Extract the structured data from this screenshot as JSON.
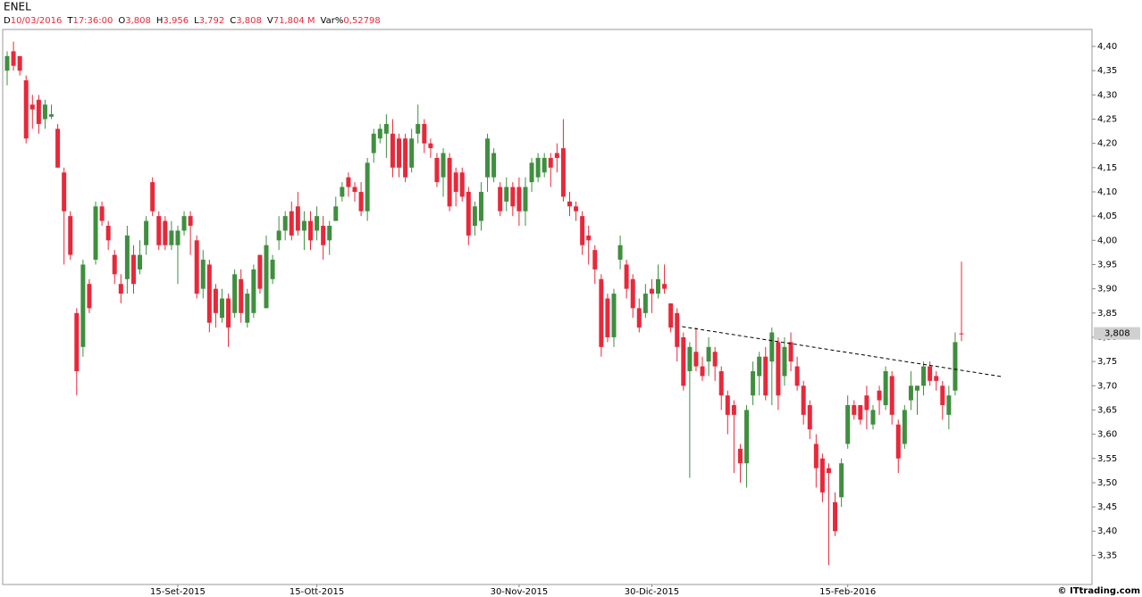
{
  "chart_data": {
    "type": "candlestick",
    "title": "ENEL",
    "info": [
      {
        "label": "D",
        "value": "10/03/2016"
      },
      {
        "label": "T",
        "value": "17:36:00"
      },
      {
        "label": "O",
        "value": "3,808"
      },
      {
        "label": "H",
        "value": "3,956"
      },
      {
        "label": "L",
        "value": "3,792"
      },
      {
        "label": "C",
        "value": "3,808"
      },
      {
        "label": "V",
        "value": "71,804 M"
      },
      {
        "label": "Var%",
        "value": "0,52798"
      }
    ],
    "source": "© ITtrading.com",
    "up_color": "#3f8f3f",
    "down_color": "#e8283a",
    "categories": [
      null,
      null,
      null,
      null,
      null,
      null,
      null,
      null,
      null,
      null,
      null,
      null,
      null,
      null,
      null,
      null,
      null,
      null,
      null,
      null,
      null,
      null,
      null,
      null,
      null,
      null,
      null,
      "15-Set-2015",
      null,
      null,
      null,
      null,
      null,
      null,
      null,
      null,
      null,
      null,
      null,
      null,
      null,
      null,
      null,
      null,
      null,
      null,
      null,
      null,
      null,
      "15-Ott-2015",
      null,
      null,
      null,
      null,
      null,
      null,
      null,
      null,
      null,
      null,
      null,
      null,
      null,
      null,
      null,
      null,
      null,
      null,
      null,
      null,
      null,
      null,
      null,
      null,
      null,
      null,
      null,
      null,
      null,
      null,
      null,
      "30-Nov-2015",
      null,
      null,
      null,
      null,
      null,
      null,
      null,
      null,
      null,
      null,
      null,
      null,
      null,
      null,
      null,
      null,
      null,
      null,
      null,
      null,
      "30-Dic-2015",
      null,
      null,
      null,
      null,
      null,
      null,
      null,
      null,
      null,
      null,
      null,
      null,
      null,
      null,
      null,
      null,
      null,
      null,
      null,
      null,
      null,
      null,
      null,
      null,
      null,
      null,
      null,
      null,
      null,
      null,
      "15-Feb-2016",
      null,
      null,
      null,
      null,
      null,
      null,
      null,
      null,
      null,
      null,
      null,
      null,
      null,
      null,
      null,
      null,
      null,
      null
    ],
    "open": [
      4.35,
      4.39,
      4.38,
      4.33,
      4.28,
      4.29,
      4.25,
      4.255,
      4.23,
      4.14,
      4.05,
      3.85,
      3.78,
      3.91,
      3.96,
      4.07,
      4.03,
      3.97,
      3.91,
      3.92,
      3.97,
      3.94,
      3.99,
      4.12,
      4.05,
      4.04,
      3.99,
      3.99,
      4.02,
      4.05,
      4.0,
      3.9,
      3.95,
      3.9,
      3.84,
      3.88,
      3.85,
      3.92,
      3.83,
      3.85,
      3.97,
      3.86,
      3.92,
      4.0,
      4.02,
      4.06,
      4.07,
      4.02,
      4.04,
      4.02,
      4.03,
      4.0,
      4.04,
      4.09,
      4.13,
      4.11,
      4.1,
      4.06,
      4.18,
      4.21,
      4.22,
      4.22,
      4.21,
      4.21,
      4.15,
      4.22,
      4.24,
      4.2,
      4.17,
      4.13,
      4.17,
      4.14,
      4.14,
      4.1,
      4.03,
      4.04,
      4.13,
      4.13,
      4.11,
      4.08,
      4.11,
      4.11,
      4.06,
      4.12,
      4.13,
      4.14,
      4.17,
      4.18,
      4.19,
      4.08,
      4.07,
      4.05,
      4.01,
      3.98,
      3.92,
      3.88,
      3.8,
      3.96,
      3.95,
      3.92,
      3.86,
      3.85,
      3.9,
      3.89,
      3.91,
      3.87,
      3.85,
      3.8,
      3.73,
      3.77,
      3.74,
      3.75,
      3.77,
      3.73,
      3.68,
      3.66,
      3.57,
      3.54,
      3.68,
      3.72,
      3.76,
      3.75,
      3.79,
      3.72,
      3.79,
      3.74,
      3.7,
      3.66,
      3.58,
      3.55,
      3.53,
      3.46,
      3.47,
      3.58,
      3.66,
      3.66,
      3.68,
      3.62,
      3.69,
      3.66,
      3.72,
      3.62,
      3.58,
      3.67,
      3.69,
      3.7,
      3.74,
      3.72,
      3.7,
      3.64,
      3.69,
      3.808
    ],
    "high": [
      4.39,
      4.41,
      4.38,
      4.34,
      4.3,
      4.3,
      4.29,
      4.28,
      4.24,
      4.15,
      4.06,
      3.86,
      3.96,
      3.92,
      4.08,
      4.08,
      4.04,
      3.98,
      3.93,
      4.03,
      3.99,
      4.0,
      4.05,
      4.13,
      4.06,
      4.05,
      4.04,
      4.03,
      4.06,
      4.06,
      4.01,
      3.98,
      3.96,
      3.91,
      3.9,
      3.89,
      3.94,
      3.94,
      3.9,
      3.95,
      3.97,
      4.01,
      3.97,
      4.05,
      4.06,
      4.08,
      4.1,
      4.06,
      4.06,
      4.07,
      4.05,
      4.04,
      4.09,
      4.12,
      4.14,
      4.12,
      4.12,
      4.17,
      4.23,
      4.24,
      4.26,
      4.25,
      4.22,
      4.22,
      4.23,
      4.28,
      4.25,
      4.21,
      4.18,
      4.19,
      4.18,
      4.15,
      4.15,
      4.11,
      4.08,
      4.12,
      4.22,
      4.19,
      4.12,
      4.13,
      4.12,
      4.13,
      4.13,
      4.17,
      4.18,
      4.18,
      4.18,
      4.2,
      4.25,
      4.1,
      4.08,
      4.06,
      4.03,
      3.99,
      3.93,
      3.89,
      3.9,
      4.01,
      3.96,
      3.93,
      3.88,
      3.91,
      3.92,
      3.95,
      3.95,
      3.87,
      3.86,
      3.81,
      3.79,
      3.82,
      3.76,
      3.8,
      3.78,
      3.74,
      3.69,
      3.67,
      3.58,
      3.66,
      3.75,
      3.77,
      3.78,
      3.82,
      3.8,
      3.8,
      3.81,
      3.76,
      3.71,
      3.67,
      3.6,
      3.56,
      3.54,
      3.48,
      3.55,
      3.68,
      3.67,
      3.66,
      3.7,
      3.66,
      3.7,
      3.74,
      3.73,
      3.63,
      3.66,
      3.73,
      3.7,
      3.75,
      3.75,
      3.73,
      3.71,
      3.7,
      3.81,
      3.956
    ],
    "low": [
      4.32,
      4.35,
      4.34,
      4.2,
      4.23,
      4.22,
      4.23,
      4.25,
      4.15,
      3.95,
      3.96,
      3.68,
      3.76,
      3.85,
      3.95,
      4.03,
      3.98,
      3.91,
      3.87,
      3.89,
      3.89,
      3.93,
      3.97,
      4.05,
      3.98,
      3.98,
      3.98,
      3.91,
      4.01,
      3.97,
      3.88,
      3.88,
      3.81,
      3.82,
      3.83,
      3.78,
      3.84,
      3.83,
      3.82,
      3.84,
      3.89,
      3.86,
      3.91,
      3.98,
      4.0,
      4.0,
      4.01,
      3.98,
      3.98,
      4.0,
      3.96,
      3.97,
      4.04,
      4.08,
      4.09,
      4.08,
      4.05,
      4.04,
      4.16,
      4.2,
      4.17,
      4.13,
      4.13,
      4.12,
      4.14,
      4.2,
      4.18,
      4.17,
      4.11,
      4.09,
      4.06,
      4.07,
      4.08,
      3.99,
      4.01,
      4.02,
      4.1,
      4.12,
      4.05,
      4.06,
      4.05,
      4.03,
      4.03,
      4.1,
      4.12,
      4.13,
      4.11,
      4.14,
      4.08,
      4.05,
      4.04,
      3.97,
      3.95,
      3.91,
      3.76,
      3.79,
      3.78,
      3.94,
      3.88,
      3.84,
      3.81,
      3.84,
      3.85,
      3.88,
      3.89,
      3.81,
      3.75,
      3.69,
      3.51,
      3.73,
      3.71,
      3.72,
      3.71,
      3.65,
      3.6,
      3.52,
      3.5,
      3.49,
      3.66,
      3.68,
      3.67,
      3.66,
      3.65,
      3.7,
      3.73,
      3.69,
      3.62,
      3.59,
      3.49,
      3.46,
      3.33,
      3.39,
      3.45,
      3.57,
      3.63,
      3.62,
      3.61,
      3.61,
      3.64,
      3.65,
      3.62,
      3.52,
      3.57,
      3.65,
      3.64,
      3.68,
      3.7,
      3.69,
      3.63,
      3.61,
      3.68,
      3.792
    ],
    "close": [
      4.38,
      4.36,
      4.35,
      4.21,
      4.27,
      4.24,
      4.28,
      4.26,
      4.15,
      4.06,
      3.97,
      3.73,
      3.95,
      3.86,
      4.07,
      4.04,
      4.0,
      3.93,
      3.89,
      4.01,
      3.91,
      3.97,
      4.04,
      4.06,
      3.99,
      3.99,
      4.02,
      4.02,
      4.05,
      4.03,
      3.89,
      3.96,
      3.83,
      3.85,
      3.88,
      3.82,
      3.93,
      3.85,
      3.89,
      3.94,
      3.9,
      3.99,
      3.96,
      4.02,
      4.05,
      4.01,
      4.02,
      4.04,
      4.0,
      4.05,
      3.99,
      4.03,
      4.07,
      4.11,
      4.11,
      4.1,
      4.06,
      4.16,
      4.22,
      4.23,
      4.24,
      4.15,
      4.15,
      4.13,
      4.21,
      4.24,
      4.2,
      4.19,
      4.12,
      4.18,
      4.07,
      4.1,
      4.09,
      4.01,
      4.07,
      4.1,
      4.21,
      4.18,
      4.06,
      4.11,
      4.07,
      4.06,
      4.11,
      4.16,
      4.17,
      4.17,
      4.15,
      4.17,
      4.09,
      4.07,
      4.06,
      3.99,
      4.0,
      3.94,
      3.78,
      3.8,
      3.89,
      3.99,
      3.9,
      3.86,
      3.82,
      3.89,
      3.89,
      3.92,
      3.9,
      3.82,
      3.78,
      3.7,
      3.78,
      3.74,
      3.72,
      3.78,
      3.74,
      3.68,
      3.64,
      3.64,
      3.54,
      3.65,
      3.73,
      3.76,
      3.68,
      3.81,
      3.68,
      3.78,
      3.75,
      3.7,
      3.64,
      3.61,
      3.53,
      3.48,
      3.52,
      3.4,
      3.54,
      3.66,
      3.64,
      3.63,
      3.65,
      3.65,
      3.67,
      3.73,
      3.64,
      3.55,
      3.65,
      3.7,
      3.7,
      3.74,
      3.71,
      3.71,
      3.66,
      3.68,
      3.79,
      3.808
    ],
    "last_price": {
      "value": 3.808,
      "label": "3,808"
    },
    "trendline": {
      "x": [
        106.8,
        157.3
      ],
      "y": [
        3.822,
        3.719
      ]
    },
    "ylim": [
      3.29,
      4.435
    ],
    "yticks": [
      {
        "value": 4.4,
        "label": "4,40"
      },
      {
        "value": 4.35,
        "label": "4,35"
      },
      {
        "value": 4.3,
        "label": "4,30"
      },
      {
        "value": 4.25,
        "label": "4,25"
      },
      {
        "value": 4.2,
        "label": "4,20"
      },
      {
        "value": 4.15,
        "label": "4,15"
      },
      {
        "value": 4.1,
        "label": "4,10"
      },
      {
        "value": 4.05,
        "label": "4,05"
      },
      {
        "value": 4.0,
        "label": "4,00"
      },
      {
        "value": 3.95,
        "label": "3,95"
      },
      {
        "value": 3.9,
        "label": "3,90"
      },
      {
        "value": 3.85,
        "label": "3,85"
      },
      {
        "value": 3.8,
        "label": "3,80"
      },
      {
        "value": 3.75,
        "label": "3,75"
      },
      {
        "value": 3.7,
        "label": "3,70"
      },
      {
        "value": 3.65,
        "label": "3,65"
      },
      {
        "value": 3.6,
        "label": "3,60"
      },
      {
        "value": 3.55,
        "label": "3,55"
      },
      {
        "value": 3.5,
        "label": "3,50"
      },
      {
        "value": 3.45,
        "label": "3,45"
      },
      {
        "value": 3.4,
        "label": "3,40"
      },
      {
        "value": 3.35,
        "label": "3,35"
      }
    ]
  }
}
